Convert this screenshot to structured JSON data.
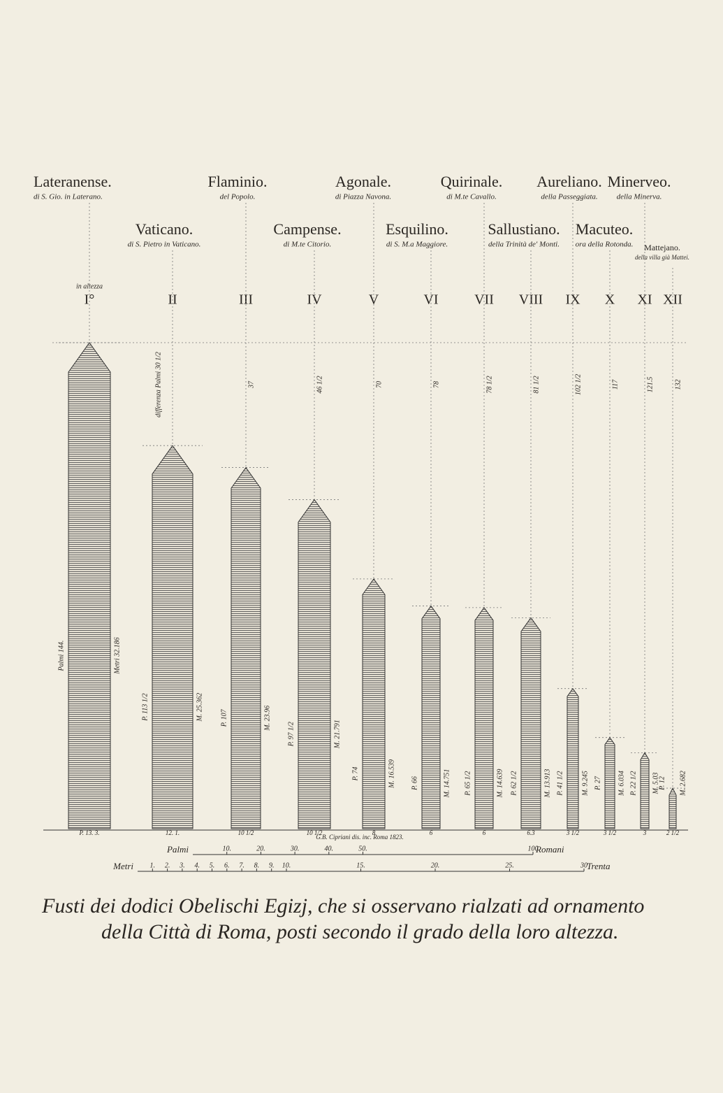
{
  "header_note": "in altezza",
  "obelisks": [
    {
      "numeral": "I°",
      "name": "Lateranense.",
      "location": "di S. Gio. in Laterano.",
      "height": 144,
      "height_label": "Palmi 144.",
      "metres_label": "Metri 32.186",
      "base_label": "P. 13. 3."
    },
    {
      "numeral": "II",
      "name": "Vaticano.",
      "location": "di S. Pietro in Vaticano.",
      "height": 113.5,
      "height_label": "P. 113 1/2",
      "metres_label": "M. 25.362",
      "base_label": "12. 1.",
      "difference_label": "differenza Palmi 30 1/2"
    },
    {
      "numeral": "III",
      "name": "Flaminio.",
      "location": "del Popolo.",
      "height": 107,
      "height_label": "P. 107",
      "metres_label": "M. 23.96",
      "base_label": "10 1/2",
      "difference_label": "37"
    },
    {
      "numeral": "IV",
      "name": "Campense.",
      "location": "di M.te Citorio.",
      "height": 97.5,
      "height_label": "P. 97 1/2",
      "metres_label": "M. 21.791",
      "base_label": "10 1/2",
      "difference_label": "46 1/2"
    },
    {
      "numeral": "V",
      "name": "Agonale.",
      "location": "di Piazza Navona.",
      "height": 74,
      "height_label": "P. 74",
      "metres_label": "M. 16.539",
      "base_label": "8",
      "difference_label": "70"
    },
    {
      "numeral": "VI",
      "name": "Esquilino.",
      "location": "di S. M.a Maggiore.",
      "height": 66,
      "height_label": "P. 66",
      "metres_label": "M. 14.751",
      "base_label": "6",
      "difference_label": "78"
    },
    {
      "numeral": "VII",
      "name": "Quirinale.",
      "location": "di M.te Cavallo.",
      "height": 65.5,
      "height_label": "P. 65 1/2",
      "metres_label": "M. 14.639",
      "base_label": "6",
      "difference_label": "78 1/2"
    },
    {
      "numeral": "VIII",
      "name": "Sallustiano.",
      "location": "della Trinità de' Monti.",
      "height": 62.5,
      "height_label": "P. 62 1/2",
      "metres_label": "M. 13.913",
      "base_label": "6.3",
      "difference_label": "81 1/2"
    },
    {
      "numeral": "IX",
      "name": "Aureliano.",
      "location": "della Passeggiata.",
      "height": 41.5,
      "height_label": "P. 41 1/2",
      "metres_label": "M. 9.245",
      "base_label": "3 1/2",
      "difference_label": "102 1/2"
    },
    {
      "numeral": "X",
      "name": "Macuteo.",
      "location": "ora della Rotonda.",
      "height": 27,
      "height_label": "P. 27",
      "metres_label": "M. 6.034",
      "base_label": "3 1/2",
      "difference_label": "117"
    },
    {
      "numeral": "XI",
      "name": "Minerveo.",
      "location": "della Minerva.",
      "height": 22.5,
      "height_label": "P. 22 1/2",
      "metres_label": "M. 5.03",
      "base_label": "3",
      "difference_label": "121.5"
    },
    {
      "numeral": "XII",
      "name": "Mattejano.",
      "location": "della villa già Mattei.",
      "height": 12,
      "height_label": "P. 12",
      "metres_label": "M. 2.682",
      "base_label": "2 1/2",
      "difference_label": "132"
    }
  ],
  "credit": "G.B. Cipriani dis. inc. Roma 1823.",
  "palmi_scale": {
    "label": "Palmi",
    "unit": "Romani",
    "ticks": [
      {
        "value": 10,
        "label": "10."
      },
      {
        "value": 20,
        "label": "20."
      },
      {
        "value": 30,
        "label": "30."
      },
      {
        "value": 40,
        "label": "40."
      },
      {
        "value": 50,
        "label": "50."
      },
      100
    ]
  },
  "metri_scale": {
    "label": "Metri",
    "unit": "Trenta",
    "ticks": [
      {
        "value": 1,
        "label": "1."
      },
      {
        "value": 2,
        "label": "2."
      },
      {
        "value": 3,
        "label": "3."
      },
      {
        "value": 4,
        "label": "4."
      },
      {
        "value": 5,
        "label": "5."
      },
      {
        "value": 6,
        "label": "6."
      },
      {
        "value": 7,
        "label": "7."
      },
      {
        "value": 8,
        "label": "8."
      },
      {
        "value": 9,
        "label": "9."
      },
      {
        "value": 10,
        "label": "10."
      },
      {
        "value": 15,
        "label": "15."
      },
      {
        "value": 20,
        "label": "20."
      },
      {
        "value": 25,
        "label": "25."
      },
      30
    ]
  },
  "caption": [
    "Fusti dei dodici Obelischi Egizj, che si osservano rialzati ad ornamento",
    "della Città di Roma, posti secondo il grado della loro altezza."
  ]
}
